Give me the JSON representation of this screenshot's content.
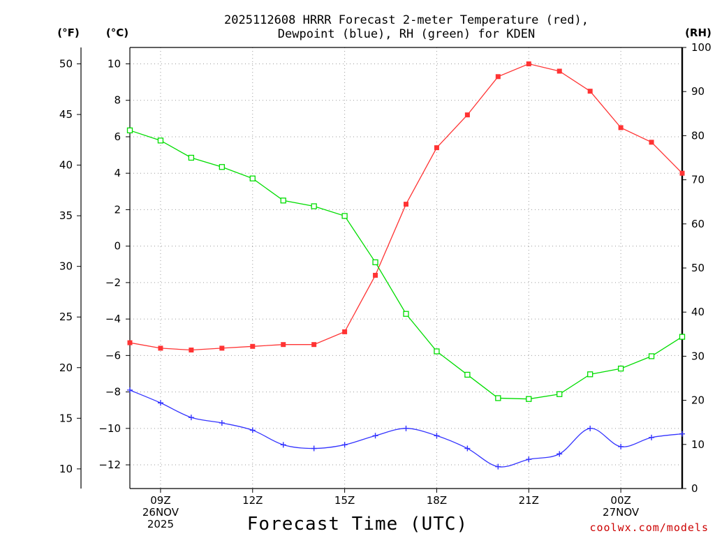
{
  "chart_data": {
    "type": "line",
    "title_line1": "2025112608 HRRR Forecast 2-meter Temperature (red),",
    "title_line2": "Dewpoint (blue), RH (green) for KDEN",
    "xlabel": "Forecast Time (UTC)",
    "credit": "coolwx.com/models",
    "units": {
      "fahrenheit": "(°F)",
      "celsius": "(°C)",
      "rh": "(RH)"
    },
    "x_hours": [
      8,
      9,
      10,
      11,
      12,
      13,
      14,
      15,
      16,
      17,
      18,
      19,
      20,
      21,
      22,
      23,
      24,
      25,
      26
    ],
    "xlim": [
      8,
      26
    ],
    "x_ticks": [
      {
        "x": 9,
        "line1": "09Z",
        "line2": "26NOV",
        "line3": "2025"
      },
      {
        "x": 12,
        "line1": "12Z",
        "line2": "",
        "line3": ""
      },
      {
        "x": 15,
        "line1": "15Z",
        "line2": "",
        "line3": ""
      },
      {
        "x": 18,
        "line1": "18Z",
        "line2": "",
        "line3": ""
      },
      {
        "x": 21,
        "line1": "21Z",
        "line2": "",
        "line3": ""
      },
      {
        "x": 24,
        "line1": "00Z",
        "line2": "27NOV",
        "line3": ""
      }
    ],
    "celsius_ylim": [
      -13.3,
      10.9
    ],
    "celsius_ticks": [
      "10",
      "8",
      "6",
      "4",
      "2",
      "0",
      "−2",
      "−4",
      "−6",
      "−8",
      "−10",
      "−12"
    ],
    "celsius_tick_values": [
      10,
      8,
      6,
      4,
      2,
      0,
      -2,
      -4,
      -6,
      -8,
      -10,
      -12
    ],
    "fahrenheit_ticks": [
      "50",
      "45",
      "40",
      "35",
      "30",
      "25",
      "20",
      "15",
      "10"
    ],
    "fahrenheit_tick_values": [
      50,
      45,
      40,
      35,
      30,
      25,
      20,
      15,
      10
    ],
    "rh_ylim": [
      0,
      100
    ],
    "rh_ticks": [
      "100",
      "90",
      "80",
      "70",
      "60",
      "50",
      "40",
      "30",
      "20",
      "10",
      "0"
    ],
    "rh_tick_values": [
      100,
      90,
      80,
      70,
      60,
      50,
      40,
      30,
      20,
      10,
      0
    ],
    "series": [
      {
        "name": "Temperature",
        "axis": "celsius",
        "color": "#ff3333",
        "marker": "filled-square",
        "values": [
          -5.3,
          -5.6,
          -5.7,
          -5.6,
          -5.5,
          -5.4,
          -5.4,
          -4.7,
          -1.6,
          2.3,
          5.4,
          7.2,
          9.3,
          10.0,
          9.6,
          8.5,
          6.5,
          5.7,
          4.0
        ]
      },
      {
        "name": "Dewpoint",
        "axis": "celsius",
        "color": "#3333ff",
        "marker": "plus",
        "values": [
          -7.9,
          -8.6,
          -9.4,
          -9.7,
          -10.1,
          -10.9,
          -11.1,
          -10.9,
          -10.4,
          -10.0,
          -10.4,
          -11.1,
          -12.1,
          -11.7,
          -11.4,
          -10.0,
          -11.0,
          -10.5,
          -10.3
        ]
      },
      {
        "name": "RH",
        "axis": "rh",
        "color": "#00dd00",
        "marker": "open-square",
        "values": [
          81.2,
          78.9,
          75.0,
          72.9,
          70.3,
          65.3,
          64.0,
          61.8,
          51.3,
          39.6,
          31.1,
          25.8,
          20.5,
          20.3,
          21.4,
          25.9,
          27.2,
          30.0,
          34.4
        ]
      }
    ]
  }
}
